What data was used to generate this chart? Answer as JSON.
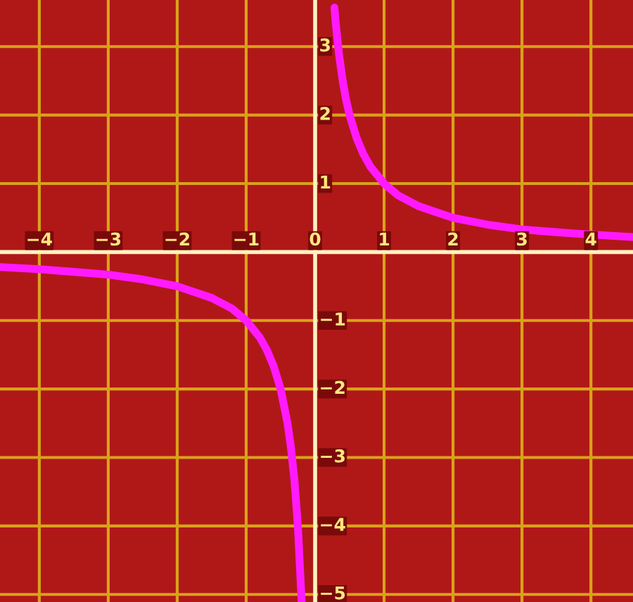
{
  "chart_data": {
    "type": "line",
    "series": [
      {
        "color": "#ff1aff",
        "x": [
          0.28,
          0.3,
          0.35,
          0.4,
          0.45,
          0.5,
          0.6,
          0.7,
          0.8,
          1,
          1.2,
          1.5,
          2,
          2.5,
          3,
          3.5,
          3.75,
          4.25,
          4.6
        ],
        "values": [
          3.57,
          3.33,
          2.86,
          2.5,
          2.22,
          2.0,
          1.67,
          1.43,
          1.25,
          1.0,
          0.83,
          0.67,
          0.5,
          0.4,
          0.33,
          0.29,
          0.27,
          0.24,
          0.22
        ]
      },
      {
        "color": "#ff1aff",
        "x": [
          -4.57,
          -4,
          -3.5,
          -3,
          -2.5,
          -2,
          -1.5,
          -1.2,
          -1,
          -0.8,
          -0.7,
          -0.6,
          -0.5,
          -0.4,
          -0.35,
          -0.3,
          -0.25,
          -0.196
        ],
        "values": [
          -0.22,
          -0.25,
          -0.29,
          -0.33,
          -0.4,
          -0.5,
          -0.67,
          -0.83,
          -1.0,
          -1.25,
          -1.43,
          -1.67,
          -2.0,
          -2.5,
          -2.86,
          -3.33,
          -4.0,
          -5.1
        ]
      }
    ],
    "xlim": [
      -4.57,
      4.61
    ],
    "ylim": [
      -5.11,
      3.68
    ],
    "xticks": [
      -4,
      -3,
      -2,
      -1,
      0,
      1,
      2,
      3,
      4
    ],
    "yticks": [
      -5,
      -4,
      -3,
      -2,
      -1,
      {
        "value": 0,
        "label": null
      },
      1,
      2,
      3
    ],
    "grid": true,
    "marker": "none",
    "line_style": "solid"
  }
}
